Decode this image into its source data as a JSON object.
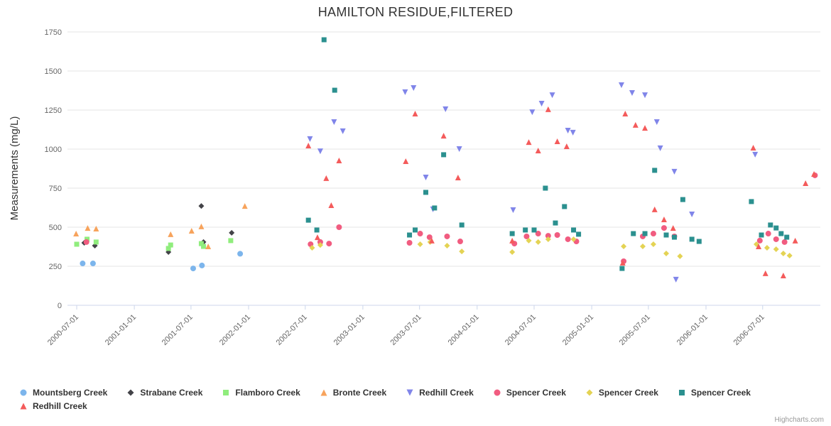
{
  "chart_data": {
    "type": "scatter",
    "title": "HAMILTON RESIDUE,FILTERED",
    "xlabel": "",
    "ylabel": "Measurements (mg/L)",
    "ylim": [
      0,
      1750
    ],
    "yticks": [
      0,
      250,
      500,
      750,
      1000,
      1250,
      1500,
      1750
    ],
    "xticks": [
      "2000-07-01",
      "2001-01-01",
      "2001-07-01",
      "2002-01-01",
      "2002-07-01",
      "2003-01-01",
      "2003-07-01",
      "2004-01-01",
      "2004-07-01",
      "2005-01-01",
      "2005-07-01",
      "2006-01-01",
      "2006-07-01"
    ],
    "x_origin": "2000-07-01",
    "grid": true,
    "legend_position": "bottom",
    "credits": "Highcharts.com",
    "series": [
      {
        "name": "Mountsberg Creek",
        "color": "#7cb5ec",
        "marker": "circle",
        "points": [
          [
            "2000-07-20",
            268
          ],
          [
            "2000-08-22",
            268
          ],
          [
            "2001-07-08",
            236
          ],
          [
            "2001-08-05",
            255
          ],
          [
            "2001-12-05",
            330
          ]
        ]
      },
      {
        "name": "Strabane Creek",
        "color": "#434348",
        "marker": "diamond",
        "points": [
          [
            "2000-07-25",
            400
          ],
          [
            "2000-08-28",
            382
          ],
          [
            "2001-04-20",
            341
          ],
          [
            "2001-08-03",
            636
          ],
          [
            "2001-08-10",
            405
          ],
          [
            "2001-11-08",
            464
          ]
        ]
      },
      {
        "name": "Flamboro Creek",
        "color": "#90ed7d",
        "marker": "square",
        "points": [
          [
            "2000-07-01",
            391
          ],
          [
            "2000-08-03",
            423
          ],
          [
            "2000-09-01",
            405
          ],
          [
            "2001-04-20",
            364
          ],
          [
            "2001-04-27",
            386
          ],
          [
            "2001-08-03",
            395
          ],
          [
            "2001-08-10",
            377
          ],
          [
            "2001-11-05",
            414
          ]
        ]
      },
      {
        "name": "Bronte Creek",
        "color": "#f7a35c",
        "marker": "triangle",
        "points": [
          [
            "2000-06-29",
            459
          ],
          [
            "2000-08-05",
            495
          ],
          [
            "2000-09-01",
            491
          ],
          [
            "2001-04-27",
            455
          ],
          [
            "2001-07-03",
            477
          ],
          [
            "2001-08-03",
            505
          ],
          [
            "2001-08-25",
            377
          ],
          [
            "2001-12-20",
            636
          ]
        ]
      },
      {
        "name": "Redhill Creek",
        "color": "#8085e9",
        "marker": "triangle-down",
        "points": [
          [
            "2002-07-16",
            1064
          ],
          [
            "2002-08-18",
            986
          ],
          [
            "2002-10-01",
            1173
          ],
          [
            "2002-10-29",
            1114
          ],
          [
            "2003-05-16",
            1364
          ],
          [
            "2003-06-12",
            1391
          ],
          [
            "2003-07-21",
            818
          ],
          [
            "2003-08-13",
            614
          ],
          [
            "2003-09-22",
            1255
          ],
          [
            "2003-11-05",
            1000
          ],
          [
            "2004-04-25",
            609
          ],
          [
            "2004-06-25",
            1236
          ],
          [
            "2004-07-25",
            1291
          ],
          [
            "2004-08-28",
            1345
          ],
          [
            "2004-10-17",
            1118
          ],
          [
            "2004-11-02",
            1105
          ],
          [
            "2005-04-06",
            1409
          ],
          [
            "2005-05-10",
            1359
          ],
          [
            "2005-06-20",
            1345
          ],
          [
            "2005-07-28",
            1173
          ],
          [
            "2005-08-08",
            1005
          ],
          [
            "2005-09-22",
            855
          ],
          [
            "2005-09-27",
            164
          ],
          [
            "2005-11-17",
            582
          ],
          [
            "2006-06-07",
            964
          ]
        ]
      },
      {
        "name": "Spencer Creek",
        "color": "#f15c80",
        "marker": "circle",
        "points": [
          [
            "2000-08-01",
            405
          ],
          [
            "2002-07-18",
            391
          ],
          [
            "2002-08-18",
            405
          ],
          [
            "2002-09-15",
            395
          ],
          [
            "2002-10-17",
            500
          ],
          [
            "2003-05-30",
            400
          ],
          [
            "2003-07-03",
            459
          ],
          [
            "2003-08-02",
            436
          ],
          [
            "2003-09-27",
            441
          ],
          [
            "2003-11-08",
            409
          ],
          [
            "2004-04-29",
            395
          ],
          [
            "2004-06-07",
            441
          ],
          [
            "2004-07-14",
            459
          ],
          [
            "2004-08-15",
            445
          ],
          [
            "2004-09-13",
            450
          ],
          [
            "2004-10-17",
            423
          ],
          [
            "2004-11-13",
            409
          ],
          [
            "2005-04-13",
            282
          ],
          [
            "2005-06-13",
            441
          ],
          [
            "2005-07-17",
            459
          ],
          [
            "2005-08-20",
            495
          ],
          [
            "2005-09-22",
            441
          ],
          [
            "2006-06-22",
            414
          ],
          [
            "2006-07-19",
            459
          ],
          [
            "2006-08-13",
            423
          ],
          [
            "2006-09-09",
            405
          ],
          [
            "2006-12-15",
            832
          ]
        ]
      },
      {
        "name": "Spencer Creek",
        "color": "#e4d354",
        "marker": "diamond",
        "points": [
          [
            "2002-07-23",
            368
          ],
          [
            "2002-08-18",
            386
          ],
          [
            "2003-07-03",
            391
          ],
          [
            "2003-08-04",
            405
          ],
          [
            "2003-09-27",
            382
          ],
          [
            "2003-11-13",
            345
          ],
          [
            "2004-04-22",
            341
          ],
          [
            "2004-06-14",
            414
          ],
          [
            "2004-07-14",
            405
          ],
          [
            "2004-08-15",
            423
          ],
          [
            "2004-11-04",
            423
          ],
          [
            "2005-04-13",
            377
          ],
          [
            "2005-06-13",
            377
          ],
          [
            "2005-07-17",
            391
          ],
          [
            "2005-08-27",
            332
          ],
          [
            "2005-10-10",
            314
          ],
          [
            "2006-06-11",
            391
          ],
          [
            "2006-07-15",
            368
          ],
          [
            "2006-08-13",
            359
          ],
          [
            "2006-09-05",
            332
          ],
          [
            "2006-09-25",
            318
          ]
        ]
      },
      {
        "name": "Spencer Creek",
        "color": "#2b908f",
        "marker": "square",
        "points": [
          [
            "2002-07-11",
            545
          ],
          [
            "2002-08-07",
            482
          ],
          [
            "2002-08-30",
            1700
          ],
          [
            "2002-10-03",
            1377
          ],
          [
            "2003-05-30",
            450
          ],
          [
            "2003-06-17",
            482
          ],
          [
            "2003-07-21",
            723
          ],
          [
            "2003-08-18",
            623
          ],
          [
            "2003-09-16",
            964
          ],
          [
            "2003-11-13",
            514
          ],
          [
            "2004-04-22",
            459
          ],
          [
            "2004-06-03",
            482
          ],
          [
            "2004-07-01",
            482
          ],
          [
            "2004-08-06",
            750
          ],
          [
            "2004-09-07",
            527
          ],
          [
            "2004-10-06",
            632
          ],
          [
            "2004-11-04",
            482
          ],
          [
            "2004-11-20",
            455
          ],
          [
            "2005-04-08",
            236
          ],
          [
            "2005-05-14",
            459
          ],
          [
            "2005-06-20",
            459
          ],
          [
            "2005-07-21",
            864
          ],
          [
            "2005-08-27",
            450
          ],
          [
            "2005-09-22",
            436
          ],
          [
            "2005-10-19",
            677
          ],
          [
            "2005-11-17",
            423
          ],
          [
            "2005-12-10",
            409
          ],
          [
            "2006-05-26",
            664
          ],
          [
            "2006-06-27",
            450
          ],
          [
            "2006-07-26",
            514
          ],
          [
            "2006-08-13",
            495
          ],
          [
            "2006-08-29",
            459
          ],
          [
            "2006-09-16",
            436
          ]
        ]
      },
      {
        "name": "Redhill Creek",
        "color": "#f45b5b",
        "marker": "triangle",
        "points": [
          [
            "2002-07-11",
            1023
          ],
          [
            "2002-08-09",
            436
          ],
          [
            "2002-09-06",
            814
          ],
          [
            "2002-09-22",
            641
          ],
          [
            "2002-10-17",
            927
          ],
          [
            "2003-05-18",
            923
          ],
          [
            "2003-06-17",
            1227
          ],
          [
            "2003-08-09",
            414
          ],
          [
            "2003-09-16",
            1086
          ],
          [
            "2003-11-01",
            818
          ],
          [
            "2004-04-22",
            414
          ],
          [
            "2004-06-14",
            1045
          ],
          [
            "2004-07-14",
            991
          ],
          [
            "2004-08-15",
            1255
          ],
          [
            "2004-09-13",
            1050
          ],
          [
            "2004-10-13",
            1018
          ],
          [
            "2005-04-10",
            273
          ],
          [
            "2005-04-18",
            1227
          ],
          [
            "2005-05-21",
            1155
          ],
          [
            "2005-06-20",
            1136
          ],
          [
            "2005-07-21",
            614
          ],
          [
            "2005-08-20",
            550
          ],
          [
            "2005-09-18",
            495
          ],
          [
            "2006-06-01",
            1009
          ],
          [
            "2006-06-18",
            377
          ],
          [
            "2006-07-10",
            205
          ],
          [
            "2006-09-05",
            191
          ],
          [
            "2006-10-13",
            414
          ],
          [
            "2006-11-15",
            782
          ],
          [
            "2006-12-12",
            841
          ]
        ]
      }
    ]
  }
}
